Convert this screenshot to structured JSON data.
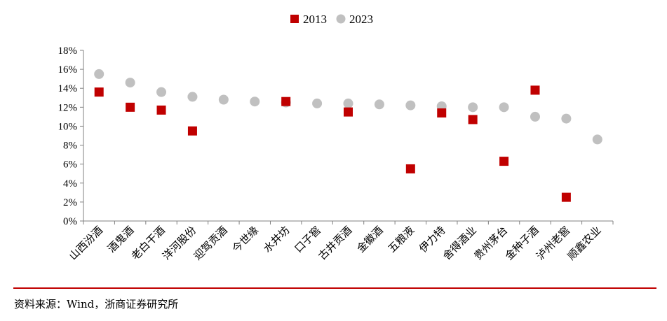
{
  "chart_data": {
    "type": "scatter",
    "categories": [
      "山西汾酒",
      "酒鬼酒",
      "老白干酒",
      "洋河股份",
      "迎驾贡酒",
      "今世缘",
      "水井坊",
      "口子窖",
      "古井贡酒",
      "金徽酒",
      "五粮液",
      "伊力特",
      "舍得酒业",
      "贵州茅台",
      "金种子酒",
      "泸州老窖",
      "顺鑫农业"
    ],
    "series": [
      {
        "name": "2013",
        "color": "#c00000",
        "marker": "square",
        "values": [
          13.6,
          12.0,
          11.7,
          9.5,
          null,
          null,
          12.6,
          null,
          11.5,
          null,
          5.5,
          11.4,
          10.7,
          6.3,
          13.8,
          2.5,
          null
        ]
      },
      {
        "name": "2023",
        "color": "#c0c0c0",
        "marker": "circle",
        "values": [
          15.5,
          14.6,
          13.6,
          13.1,
          12.8,
          12.6,
          12.5,
          12.4,
          12.4,
          12.3,
          12.2,
          12.1,
          12.0,
          12.0,
          11.0,
          10.8,
          8.6
        ]
      }
    ],
    "yticks": [
      "0%",
      "2%",
      "4%",
      "6%",
      "8%",
      "10%",
      "12%",
      "14%",
      "16%",
      "18%"
    ],
    "ylim": [
      0,
      18
    ],
    "legend_position": "top-center",
    "grid": false
  },
  "source_text": "资料来源：Wind，浙商证券研究所"
}
